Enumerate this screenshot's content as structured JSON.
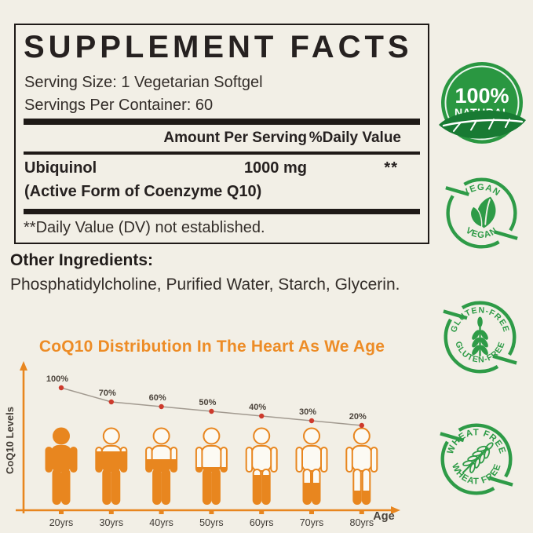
{
  "page": {
    "background_color": "#f2efe6"
  },
  "facts_panel": {
    "title": "SUPPLEMENT FACTS",
    "serving_size": "Serving Size: 1 Vegetarian Softgel",
    "servings_per_container": "Servings Per Container: 60",
    "header": {
      "amount": "Amount Per Serving",
      "daily_value": "%Daily Value"
    },
    "rows": [
      {
        "name": "Ubiquinol",
        "detail": "(Active Form of Coenzyme Q10)",
        "amount": "1000 mg",
        "daily_value": "**"
      }
    ],
    "footnote": "**Daily Value (DV) not established."
  },
  "other_ingredients": {
    "label": "Other Ingredients:",
    "value": "Phosphatidylcholine, Purified Water, Starch, Glycerin."
  },
  "chart_data": {
    "type": "line",
    "title": "CoQ10 Distribution In The Heart As We Age",
    "xlabel": "Age",
    "ylabel": "CoQ10 Levels",
    "categories": [
      "20yrs",
      "30yrs",
      "40yrs",
      "50yrs",
      "60yrs",
      "70yrs",
      "80yrs"
    ],
    "values": [
      100,
      70,
      60,
      50,
      40,
      30,
      20
    ],
    "point_labels": [
      "100%",
      "70%",
      "60%",
      "50%",
      "40%",
      "30%",
      "20%"
    ],
    "ylim": [
      0,
      100
    ],
    "grid": false,
    "legend": false,
    "colors": {
      "line": "#a29a90",
      "point": "#cd3a2c",
      "axis": "#e8861f",
      "figure": "#e8861f",
      "figure_interior": "#fcfaf3",
      "title": "#ed8c26",
      "tick_label": "#3f3a34",
      "point_label": "#4c443c"
    }
  },
  "badges": [
    {
      "name": "100-percent-natural",
      "line1": "100%",
      "line2": "NATURAL"
    },
    {
      "name": "vegan",
      "top": "VEGAN",
      "bottom": "VEGAN"
    },
    {
      "name": "gluten-free",
      "top": "GLUTEN-FREE",
      "bottom": "GLUTEN-FREE"
    },
    {
      "name": "wheat-free",
      "top": "WHEAT FREE",
      "bottom": "WHEAT FREE"
    }
  ],
  "colors": {
    "badge_green": "#2e9b47",
    "badge_green_solid": "#2a9741",
    "badge_green_dark": "#187a33",
    "rule_black": "#1f1a17",
    "text": "#262120"
  }
}
